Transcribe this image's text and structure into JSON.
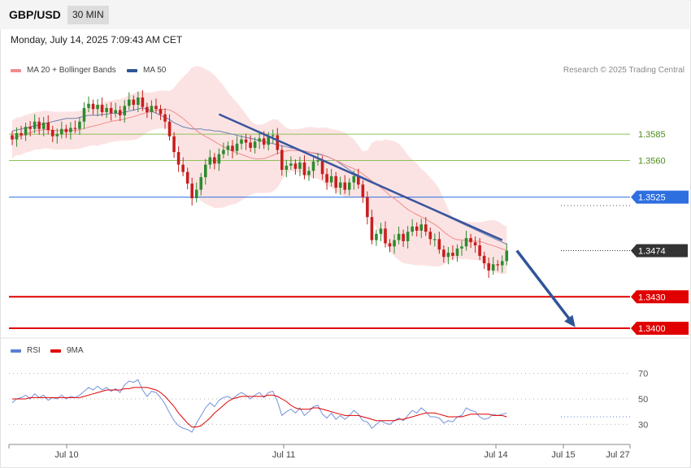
{
  "header": {
    "symbol": "GBP/USD",
    "timeframe": "30 MIN",
    "datetime": "Monday, July 14, 2025 7:09:43 AM CET"
  },
  "legend": {
    "ma20_label": "MA 20 + Bollinger Bands",
    "ma20_color": "#f08c8c",
    "ma50_label": "MA 50",
    "ma50_color": "#2f5597",
    "credit": "Research © 2025 Trading Central"
  },
  "rsi_legend": {
    "rsi_label": "RSI",
    "rsi_color": "#5b7fd6",
    "ma_label": "9MA",
    "ma_color": "#e00000"
  },
  "chart_data": [
    {
      "type": "candlestick",
      "title": "GBP/USD",
      "ylim": [
        1.3385,
        1.3675
      ],
      "x_tick_labels": [
        "Jul 10",
        "Jul 11",
        "Jul 14",
        "Jul 15",
        "Jul 27"
      ],
      "levels": [
        {
          "label": "1.3585",
          "value": 1.3585,
          "color": "#8dbf5a",
          "kind": "resistance"
        },
        {
          "label": "1.3560",
          "value": 1.356,
          "color": "#8dbf5a",
          "kind": "resistance"
        },
        {
          "label": "1.3525",
          "value": 1.3525,
          "color": "#2e6fe0",
          "kind": "pivot"
        },
        {
          "label": "1.3474",
          "value": 1.3474,
          "color": "#333333",
          "kind": "last"
        },
        {
          "label": "1.3430",
          "value": 1.343,
          "color": "#e00000",
          "kind": "support"
        },
        {
          "label": "1.3400",
          "value": 1.34,
          "color": "#e00000",
          "kind": "support"
        }
      ],
      "candle_colors": {
        "up": "#2e8b2e",
        "down": "#c81e1e"
      },
      "closes": [
        1.358,
        1.3586,
        1.3584,
        1.3592,
        1.359,
        1.3597,
        1.359,
        1.3596,
        1.3589,
        1.3583,
        1.3585,
        1.359,
        1.3587,
        1.3591,
        1.359,
        1.3597,
        1.361,
        1.3614,
        1.3609,
        1.3613,
        1.3606,
        1.361,
        1.3605,
        1.3608,
        1.3603,
        1.3612,
        1.3618,
        1.3613,
        1.362,
        1.3611,
        1.3606,
        1.3612,
        1.3609,
        1.3604,
        1.3597,
        1.3583,
        1.3568,
        1.3556,
        1.3549,
        1.3538,
        1.3524,
        1.3532,
        1.3544,
        1.3556,
        1.3563,
        1.3557,
        1.3566,
        1.357,
        1.3574,
        1.3569,
        1.3576,
        1.358,
        1.3577,
        1.3572,
        1.3578,
        1.3581,
        1.3575,
        1.3583,
        1.3584,
        1.357,
        1.3551,
        1.3555,
        1.3557,
        1.3552,
        1.3558,
        1.3546,
        1.355,
        1.3559,
        1.356,
        1.3547,
        1.3539,
        1.3545,
        1.3534,
        1.3539,
        1.3532,
        1.3539,
        1.3545,
        1.3537,
        1.3525,
        1.3506,
        1.3484,
        1.349,
        1.3495,
        1.3481,
        1.3478,
        1.3484,
        1.349,
        1.3483,
        1.3492,
        1.3497,
        1.3493,
        1.3499,
        1.3492,
        1.3485,
        1.3485,
        1.3475,
        1.3468,
        1.3472,
        1.3469,
        1.3476,
        1.3478,
        1.3486,
        1.3482,
        1.3479,
        1.3469,
        1.3462,
        1.3455,
        1.3461,
        1.346,
        1.3464,
        1.3474
      ],
      "ma50": [
        1.3588,
        1.3589,
        1.359,
        1.3591,
        1.3592,
        1.3593,
        1.3594,
        1.3595,
        1.3596,
        1.3597,
        1.3598,
        1.3599,
        1.36,
        1.36,
        1.36,
        1.3601,
        1.3602,
        1.3603,
        1.3603,
        1.3603,
        1.3604,
        1.3604,
        1.3605,
        1.3605,
        1.3605,
        1.3606,
        1.3607,
        1.3608,
        1.3609,
        1.361,
        1.3609,
        1.3607,
        1.3605,
        1.3603,
        1.3601,
        1.3599,
        1.3596,
        1.3594,
        1.3592,
        1.3591,
        1.359,
        1.359,
        1.359,
        1.3589,
        1.3589,
        1.3588,
        1.3588,
        1.3587,
        1.3586,
        1.3585,
        1.3584,
        1.3583,
        1.3582,
        1.3581,
        1.358,
        1.3579,
        1.3578,
        1.3577,
        1.3576,
        1.3575,
        1.3574,
        1.3573,
        1.3572,
        1.3571,
        1.357,
        1.3569,
        1.3568,
        1.3567,
        1.3566,
        1.3565,
        1.3564,
        1.3562,
        1.356,
        1.3557,
        1.3554,
        1.3551,
        1.3548,
        1.3546,
        1.3544,
        1.3542,
        1.354,
        1.3538,
        1.3536,
        1.3534,
        1.3532,
        1.353,
        1.3528,
        1.3526,
        1.3524,
        1.3522,
        1.352,
        1.3518,
        1.3516,
        1.3514,
        1.3512,
        1.351,
        1.3508,
        1.3506,
        1.3504,
        1.3502,
        1.35,
        1.3498,
        1.3496,
        1.3494,
        1.3492,
        1.349,
        1.3488,
        1.3486,
        1.3484,
        1.3482,
        1.348
      ],
      "trendline": [
        {
          "i": 46,
          "v": 1.3604
        },
        {
          "i": 109,
          "v": 1.3484
        }
      ],
      "forecast_arrow": [
        {
          "i": 111,
          "v": 1.3474
        },
        {
          "i": 124,
          "v": 1.3401
        }
      ]
    },
    {
      "type": "line",
      "title": "RSI",
      "ylim": [
        18,
        82
      ],
      "y_tick_labels": [
        {
          "label": "70",
          "value": 70
        },
        {
          "label": "50",
          "value": 50
        },
        {
          "label": "30",
          "value": 30
        }
      ],
      "series": [
        {
          "name": "RSI",
          "color": "#5b7fd6",
          "values": [
            47,
            50,
            51,
            53,
            50,
            54,
            51,
            53,
            49,
            51,
            50,
            53,
            50,
            52,
            51,
            53,
            56,
            59,
            57,
            60,
            57,
            59,
            56,
            58,
            55,
            61,
            64,
            63,
            65,
            57,
            52,
            56,
            55,
            51,
            46,
            39,
            33,
            29,
            27,
            26,
            24,
            31,
            37,
            43,
            47,
            44,
            49,
            51,
            52,
            50,
            53,
            55,
            53,
            50,
            53,
            55,
            51,
            55,
            56,
            48,
            37,
            40,
            42,
            39,
            43,
            37,
            40,
            44,
            45,
            38,
            35,
            39,
            34,
            37,
            34,
            37,
            41,
            38,
            33,
            32,
            27,
            30,
            33,
            31,
            30,
            33,
            35,
            33,
            37,
            41,
            39,
            43,
            40,
            36,
            36,
            35,
            31,
            33,
            32,
            36,
            37,
            43,
            41,
            40,
            36,
            34,
            35,
            38,
            37,
            38,
            39
          ]
        },
        {
          "name": "9MA",
          "color": "#e00000",
          "values": [
            50,
            50,
            50,
            50,
            51,
            51,
            51,
            51,
            51,
            51,
            51,
            51,
            51,
            51,
            51,
            51,
            52,
            53,
            54,
            55,
            56,
            57,
            57,
            57,
            57,
            58,
            58,
            59,
            59,
            59,
            59,
            58,
            57,
            55,
            52,
            48,
            44,
            39,
            35,
            31,
            28,
            28,
            29,
            32,
            35,
            39,
            42,
            45,
            48,
            50,
            51,
            52,
            52,
            52,
            52,
            52,
            52,
            53,
            53,
            52,
            50,
            48,
            45,
            43,
            42,
            42,
            42,
            43,
            43,
            42,
            41,
            40,
            39,
            38,
            37,
            37,
            37,
            37,
            36,
            35,
            34,
            33,
            33,
            33,
            33,
            33,
            34,
            34,
            35,
            36,
            37,
            38,
            39,
            39,
            39,
            38,
            37,
            36,
            36,
            36,
            36,
            37,
            38,
            38,
            38,
            38,
            38,
            37,
            37,
            37,
            36
          ]
        }
      ]
    }
  ]
}
